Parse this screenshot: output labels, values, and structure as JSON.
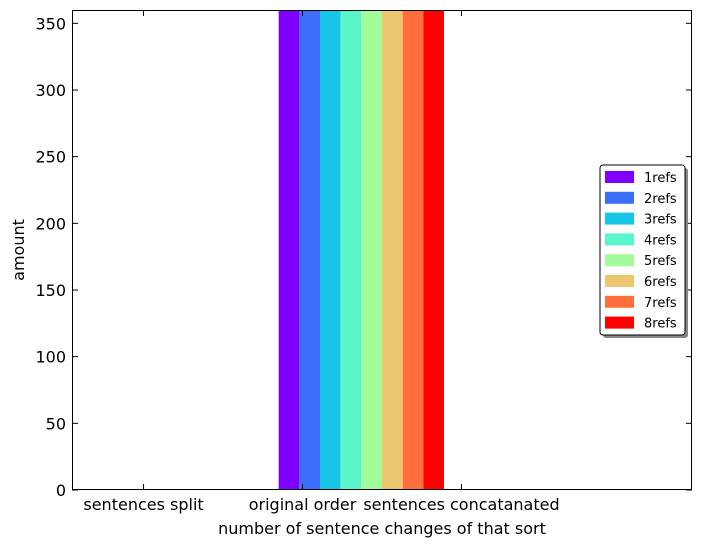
{
  "chart_data": {
    "type": "bar",
    "title": "",
    "xlabel": "number of sentence changes of that sort",
    "ylabel": "amount",
    "categories": [
      "sentences split",
      "original order",
      "sentences concatanated"
    ],
    "ylim": [
      0,
      360
    ],
    "yticks": [
      0,
      50,
      100,
      150,
      200,
      250,
      300,
      350
    ],
    "grid": false,
    "legend_position": "center-right",
    "series": [
      {
        "name": "1refs",
        "color": "#8000ff",
        "values": [
          0,
          360,
          0
        ]
      },
      {
        "name": "2refs",
        "color": "#3c6ff7",
        "values": [
          0,
          360,
          0
        ]
      },
      {
        "name": "3refs",
        "color": "#17c6e6",
        "values": [
          0,
          360,
          0
        ]
      },
      {
        "name": "4refs",
        "color": "#5af5cb",
        "values": [
          0,
          360,
          0
        ]
      },
      {
        "name": "5refs",
        "color": "#a4fb9a",
        "values": [
          0,
          360,
          0
        ]
      },
      {
        "name": "6refs",
        "color": "#edc770",
        "values": [
          0,
          360,
          0
        ]
      },
      {
        "name": "7refs",
        "color": "#ff6f3c",
        "values": [
          0,
          360,
          0
        ]
      },
      {
        "name": "8refs",
        "color": "#ff0000",
        "values": [
          0,
          360,
          0
        ]
      }
    ]
  }
}
